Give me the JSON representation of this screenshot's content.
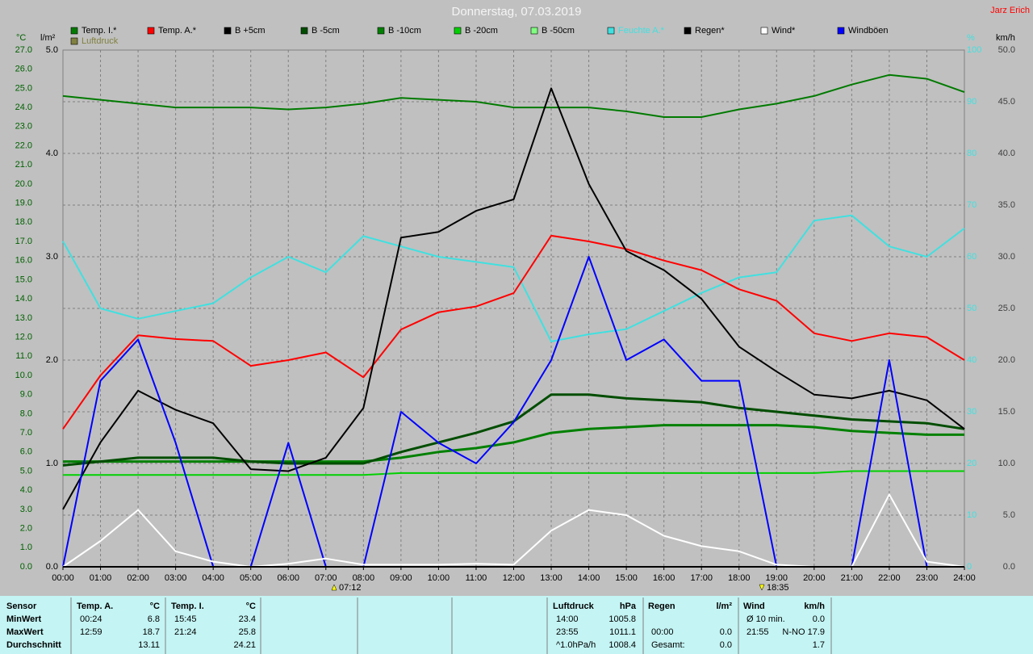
{
  "chart_data": {
    "type": "line",
    "title": "Donnerstag, 07.03.2019",
    "author": "Jarz Erich",
    "axis_labels": {
      "y": "°C",
      "y2": "l/m²",
      "y3": "%",
      "y4": "km/h"
    },
    "annotations": [
      "07:12",
      "18:35"
    ],
    "grid": true,
    "x": [
      0,
      1,
      2,
      3,
      4,
      5,
      6,
      7,
      8,
      9,
      10,
      11,
      12,
      13,
      14,
      15,
      16,
      17,
      18,
      19,
      20,
      21,
      22,
      23,
      24
    ],
    "xlim": [
      0,
      24
    ],
    "xticks": [
      {
        "value": 0,
        "label": "00:00"
      },
      {
        "value": 1,
        "label": "01:00"
      },
      {
        "value": 2,
        "label": "02:00"
      },
      {
        "value": 3,
        "label": "03:00"
      },
      {
        "value": 4,
        "label": "04:00"
      },
      {
        "value": 5,
        "label": "05:00"
      },
      {
        "value": 6,
        "label": "06:00"
      },
      {
        "value": 7,
        "label": "07:00"
      },
      {
        "value": 8,
        "label": "08:00"
      },
      {
        "value": 9,
        "label": "09:00"
      },
      {
        "value": 10,
        "label": "10:00"
      },
      {
        "value": 11,
        "label": "11:00"
      },
      {
        "value": 12,
        "label": "12:00"
      },
      {
        "value": 13,
        "label": "13:00"
      },
      {
        "value": 14,
        "label": "14:00"
      },
      {
        "value": 15,
        "label": "15:00"
      },
      {
        "value": 16,
        "label": "16:00"
      },
      {
        "value": 17,
        "label": "17:00"
      },
      {
        "value": 18,
        "label": "18:00"
      },
      {
        "value": 19,
        "label": "19:00"
      },
      {
        "value": 20,
        "label": "20:00"
      },
      {
        "value": 21,
        "label": "21:00"
      },
      {
        "value": 22,
        "label": "22:00"
      },
      {
        "value": 23,
        "label": "23:00"
      },
      {
        "value": 24,
        "label": "24:00"
      }
    ],
    "ylim": [
      0,
      27
    ],
    "yticks": [
      {
        "value": 0,
        "label": "0.0"
      },
      {
        "value": 1,
        "label": "1.0"
      },
      {
        "value": 2,
        "label": "2.0"
      },
      {
        "value": 3,
        "label": "3.0"
      },
      {
        "value": 4,
        "label": "4.0"
      },
      {
        "value": 5,
        "label": "5.0"
      },
      {
        "value": 6,
        "label": "6.0"
      },
      {
        "value": 7,
        "label": "7.0"
      },
      {
        "value": 8,
        "label": "8.0"
      },
      {
        "value": 9,
        "label": "9.0"
      },
      {
        "value": 10,
        "label": "10.0"
      },
      {
        "value": 11,
        "label": "11.0"
      },
      {
        "value": 12,
        "label": "12.0"
      },
      {
        "value": 13,
        "label": "13.0"
      },
      {
        "value": 14,
        "label": "14.0"
      },
      {
        "value": 15,
        "label": "15.0"
      },
      {
        "value": 16,
        "label": "16.0"
      },
      {
        "value": 17,
        "label": "17.0"
      },
      {
        "value": 18,
        "label": "18.0"
      },
      {
        "value": 19,
        "label": "19.0"
      },
      {
        "value": 20,
        "label": "20.0"
      },
      {
        "value": 21,
        "label": "21.0"
      },
      {
        "value": 22,
        "label": "22.0"
      },
      {
        "value": 23,
        "label": "23.0"
      },
      {
        "value": 24,
        "label": "24.0"
      },
      {
        "value": 25,
        "label": "25.0"
      },
      {
        "value": 26,
        "label": "26.0"
      },
      {
        "value": 27,
        "label": "27.0"
      }
    ],
    "y2lim": [
      0,
      5
    ],
    "y2ticks": [
      {
        "value": 0,
        "label": "0.0"
      },
      {
        "value": 1,
        "label": "1.0"
      },
      {
        "value": 2,
        "label": "2.0"
      },
      {
        "value": 3,
        "label": "3.0"
      },
      {
        "value": 4,
        "label": "4.0"
      },
      {
        "value": 5,
        "label": "5.0"
      }
    ],
    "y3lim": [
      0,
      100
    ],
    "y3ticks": [
      0,
      10,
      20,
      30,
      40,
      50,
      60,
      70,
      80,
      90,
      100
    ],
    "y4lim": [
      0,
      50
    ],
    "y4ticks": [
      {
        "value": 0,
        "label": "0.0"
      },
      {
        "value": 5,
        "label": "5.0"
      },
      {
        "value": 10,
        "label": "10.0"
      },
      {
        "value": 15,
        "label": "15.0"
      },
      {
        "value": 20,
        "label": "20.0"
      },
      {
        "value": 25,
        "label": "25.0"
      },
      {
        "value": 30,
        "label": "30.0"
      },
      {
        "value": 35,
        "label": "35.0"
      },
      {
        "value": 40,
        "label": "40.0"
      },
      {
        "value": 45,
        "label": "45.0"
      },
      {
        "value": 50,
        "label": "50.0"
      }
    ],
    "series": [
      {
        "name": "Temp. I.*",
        "color": "#007a00",
        "axis": "y",
        "values": [
          24.6,
          24.4,
          24.2,
          24.0,
          24.0,
          24.0,
          23.9,
          24.0,
          24.2,
          24.5,
          24.4,
          24.3,
          24.0,
          24.0,
          24.0,
          23.8,
          23.5,
          23.5,
          23.9,
          24.2,
          24.6,
          25.2,
          25.7,
          25.5,
          24.8
        ]
      },
      {
        "name": "Temp. A.*",
        "color": "#ff0000",
        "axis": "y",
        "values": [
          7.2,
          10.0,
          12.1,
          11.9,
          11.8,
          10.5,
          10.8,
          11.2,
          9.9,
          12.4,
          13.3,
          13.6,
          14.3,
          17.3,
          17.0,
          16.6,
          16.0,
          15.5,
          14.5,
          13.9,
          12.2,
          11.8,
          12.2,
          12.0,
          10.8
        ]
      },
      {
        "name": "B +5cm",
        "color": "#000000",
        "axis": "y",
        "values": [
          3.0,
          6.5,
          9.2,
          8.2,
          7.5,
          5.1,
          5.0,
          5.7,
          8.3,
          17.2,
          17.5,
          18.6,
          19.2,
          25.0,
          20.0,
          16.5,
          15.5,
          14.0,
          11.5,
          10.2,
          9.0,
          8.8,
          9.2,
          8.7,
          7.2
        ]
      },
      {
        "name": "B -5cm",
        "color": "#004d00",
        "axis": "y",
        "values": [
          5.3,
          5.5,
          5.7,
          5.7,
          5.7,
          5.5,
          5.4,
          5.4,
          5.4,
          6.0,
          6.5,
          7.0,
          7.6,
          9.0,
          9.0,
          8.8,
          8.7,
          8.6,
          8.3,
          8.1,
          7.9,
          7.7,
          7.6,
          7.5,
          7.2
        ]
      },
      {
        "name": "B -10cm",
        "color": "#008000",
        "axis": "y",
        "values": [
          5.5,
          5.5,
          5.5,
          5.5,
          5.5,
          5.5,
          5.5,
          5.5,
          5.5,
          5.7,
          6.0,
          6.2,
          6.5,
          7.0,
          7.2,
          7.3,
          7.4,
          7.4,
          7.4,
          7.4,
          7.3,
          7.1,
          7.0,
          6.9,
          6.9
        ]
      },
      {
        "name": "B -20cm",
        "color": "#00d000",
        "axis": "y",
        "values": [
          4.8,
          4.8,
          4.8,
          4.8,
          4.8,
          4.8,
          4.8,
          4.8,
          4.8,
          4.9,
          4.9,
          4.9,
          4.9,
          4.9,
          4.9,
          4.9,
          4.9,
          4.9,
          4.9,
          4.9,
          4.9,
          5.0,
          5.0,
          5.0,
          5.0
        ]
      },
      {
        "name": "B -50cm",
        "color": "#80ff80",
        "axis": "y",
        "values": [
          null,
          null,
          null,
          null,
          null,
          null,
          null,
          null,
          null,
          null,
          null,
          null,
          null,
          null,
          null,
          null,
          null,
          null,
          null,
          null,
          null,
          null,
          null,
          null,
          null
        ]
      },
      {
        "name": "Feuchte A.*",
        "color": "#40e0e0",
        "axis": "y3",
        "values": [
          63,
          50,
          48,
          49.5,
          51,
          56,
          60,
          57,
          64,
          62,
          60,
          59,
          58,
          43.6,
          45,
          46,
          49.5,
          53,
          56,
          57,
          67,
          68,
          62,
          60,
          65.5
        ]
      },
      {
        "name": "Regen*",
        "color": "#000000",
        "axis": "y2",
        "values": [
          0,
          0,
          0,
          0,
          0,
          0,
          0,
          0,
          0,
          0,
          0,
          0,
          0,
          0,
          0,
          0,
          0,
          0,
          0,
          0,
          0,
          0,
          0,
          0,
          0
        ]
      },
      {
        "name": "Wind*",
        "color": "#ffffff",
        "axis": "y4",
        "values": [
          0,
          2.5,
          5.5,
          1.5,
          0.5,
          0,
          0.3,
          0.8,
          0.2,
          0.2,
          0.2,
          0.3,
          0.2,
          3.5,
          5.5,
          5.0,
          3.0,
          2.0,
          1.5,
          0.2,
          0,
          0,
          7.0,
          0.5,
          0
        ]
      },
      {
        "name": "Windböen",
        "color": "#0000ff",
        "axis": "y4",
        "values": [
          0,
          18,
          22,
          12,
          0,
          0,
          12,
          0,
          0,
          15,
          12,
          10,
          14,
          20,
          30,
          20,
          22,
          18,
          18,
          0,
          0,
          0,
          20,
          0,
          0
        ]
      },
      {
        "name": "Luftdruck",
        "color": "#808040",
        "axis": "y",
        "values": [
          null,
          null,
          null,
          null,
          null,
          null,
          null,
          null,
          null,
          null,
          null,
          null,
          null,
          null,
          null,
          null,
          null,
          null,
          null,
          null,
          null,
          null,
          null,
          null,
          null
        ]
      }
    ]
  },
  "table": {
    "sensor": {
      "header": "Sensor",
      "rows": [
        "MinWert",
        "MaxWert",
        "Durchschnitt"
      ]
    },
    "groups": [
      {
        "header": "Temp. A.",
        "unit": "°C",
        "rows": [
          {
            "time": "00:24",
            "value": "6.8"
          },
          {
            "time": "12:59",
            "value": "18.7"
          },
          {
            "value": "13.11"
          }
        ]
      },
      {
        "header": "Temp. I.",
        "unit": "°C",
        "rows": [
          {
            "time": "15:45",
            "value": "23.4"
          },
          {
            "time": "21:24",
            "value": "25.8"
          },
          {
            "value": "24.21"
          }
        ]
      },
      {
        "header": "Luftdruck",
        "unit": "hPa",
        "rows": [
          {
            "time": "14:00",
            "value": "1005.8"
          },
          {
            "time": "23:55",
            "value": "1011.1"
          },
          {
            "time": "^1.0hPa/h",
            "value": "1008.4"
          }
        ]
      },
      {
        "header": "Regen",
        "unit": "l/m²",
        "rows": [
          null,
          {
            "time": "00:00",
            "value": "0.0"
          },
          {
            "time": "Gesamt:",
            "value": "0.0"
          }
        ]
      },
      {
        "header": "Wind",
        "unit": "km/h",
        "rows": [
          {
            "time": "Ø 10 min.",
            "value": "0.0"
          },
          {
            "time": "21:55",
            "value": "N-NO 17.9"
          },
          {
            "value": "1.7"
          }
        ]
      }
    ]
  }
}
